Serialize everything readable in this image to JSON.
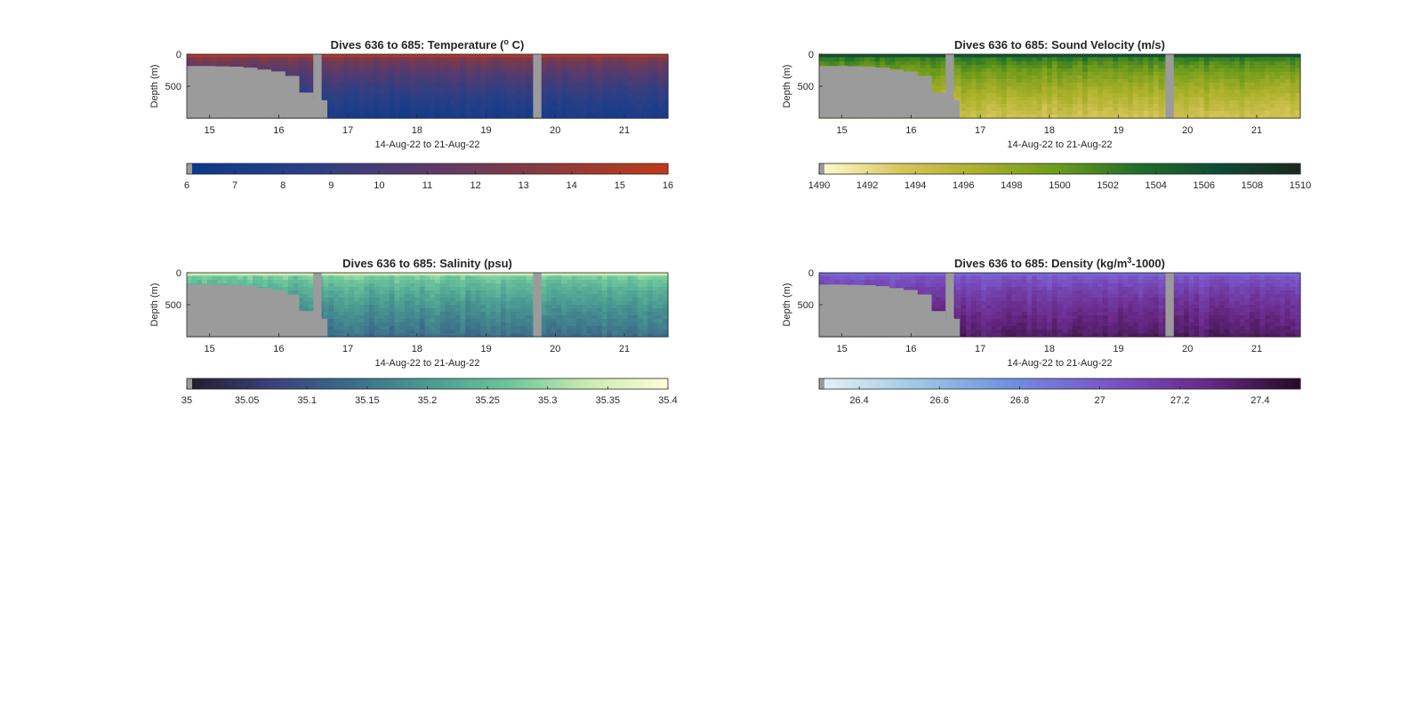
{
  "chart_data": [
    {
      "type": "heatmap",
      "title": "Dives 636 to 685: Temperature (",
      "title_sup": "o",
      "title_suffix": " C)",
      "ylabel": "Depth (m)",
      "xlabel": "14-Aug-22 to 21-Aug-22",
      "x_ticks": [
        "15",
        "16",
        "17",
        "18",
        "19",
        "20",
        "21"
      ],
      "x_range": [
        14.67,
        21.63
      ],
      "y_ticks": [
        "0",
        "500"
      ],
      "y_range": [
        0,
        1000
      ],
      "y_reversed": true,
      "bathymetry_depth": [
        185,
        185,
        190,
        195,
        210,
        240,
        270,
        340,
        600,
        720,
        1000
      ],
      "gap_days": [
        [
          16.5,
          16.62
        ],
        [
          19.68,
          19.8
        ]
      ],
      "colorbar": {
        "ticks": [
          "6",
          "7",
          "8",
          "9",
          "10",
          "11",
          "12",
          "13",
          "14",
          "15",
          "16"
        ],
        "range": [
          6,
          16
        ],
        "colors": [
          "#0a3a8c",
          "#2a3f86",
          "#5b3a6a",
          "#8a3a3c",
          "#c13a1a"
        ]
      },
      "surface_value": 14.5,
      "deep_value": 7.0
    },
    {
      "type": "heatmap",
      "title": "Dives 636 to 685: Sound Velocity (m/s)",
      "ylabel": "Depth (m)",
      "xlabel": "14-Aug-22 to 21-Aug-22",
      "x_ticks": [
        "15",
        "16",
        "17",
        "18",
        "19",
        "20",
        "21"
      ],
      "x_range": [
        14.67,
        21.63
      ],
      "y_ticks": [
        "0",
        "500"
      ],
      "y_range": [
        0,
        1000
      ],
      "y_reversed": true,
      "colorbar": {
        "ticks": [
          "1490",
          "1492",
          "1494",
          "1496",
          "1498",
          "1500",
          "1502",
          "1504",
          "1506",
          "1508",
          "1510"
        ],
        "range": [
          1490,
          1510
        ],
        "colors": [
          "#fefcd0",
          "#d9c55a",
          "#a9b02a",
          "#6a9a1a",
          "#1f6e2a",
          "#0f4a36",
          "#1a2a1e"
        ]
      },
      "surface_value": 1505,
      "deep_value": 1494
    },
    {
      "type": "heatmap",
      "title": "Dives 636 to 685: Salinity (psu)",
      "ylabel": "Depth (m)",
      "xlabel": "14-Aug-22 to 21-Aug-22",
      "x_ticks": [
        "15",
        "16",
        "17",
        "18",
        "19",
        "20",
        "21"
      ],
      "x_range": [
        14.67,
        21.63
      ],
      "y_ticks": [
        "0",
        "500"
      ],
      "y_range": [
        0,
        1000
      ],
      "y_reversed": true,
      "colorbar": {
        "ticks": [
          "35",
          "35.05",
          "35.1",
          "35.15",
          "35.2",
          "35.25",
          "35.3",
          "35.35",
          "35.4"
        ],
        "range": [
          35,
          35.4
        ],
        "colors": [
          "#241c2c",
          "#3a3f7a",
          "#3a6a8a",
          "#4a9a92",
          "#6ac49a",
          "#c8eab0",
          "#fdfdd8"
        ]
      },
      "surface_value": 35.32,
      "deep_value": 35.14
    },
    {
      "type": "heatmap",
      "title": "Dives 636 to 685: Density (kg/m",
      "title_sup": "3",
      "title_suffix": "-1000)",
      "ylabel": "Depth (m)",
      "xlabel": "14-Aug-22 to 21-Aug-22",
      "x_ticks": [
        "15",
        "16",
        "17",
        "18",
        "19",
        "20",
        "21"
      ],
      "x_range": [
        14.67,
        21.63
      ],
      "y_ticks": [
        "0",
        "500"
      ],
      "y_range": [
        0,
        1000
      ],
      "y_reversed": true,
      "colorbar": {
        "ticks": [
          "26.4",
          "26.6",
          "26.8",
          "27",
          "27.2",
          "27.4"
        ],
        "range": [
          26.3,
          27.5
        ],
        "colors": [
          "#e6f2f4",
          "#9ec8e6",
          "#6f8fe0",
          "#7a55c8",
          "#6a2a8a",
          "#2a0a2a"
        ]
      },
      "surface_value": 26.9,
      "deep_value": 27.35
    }
  ]
}
